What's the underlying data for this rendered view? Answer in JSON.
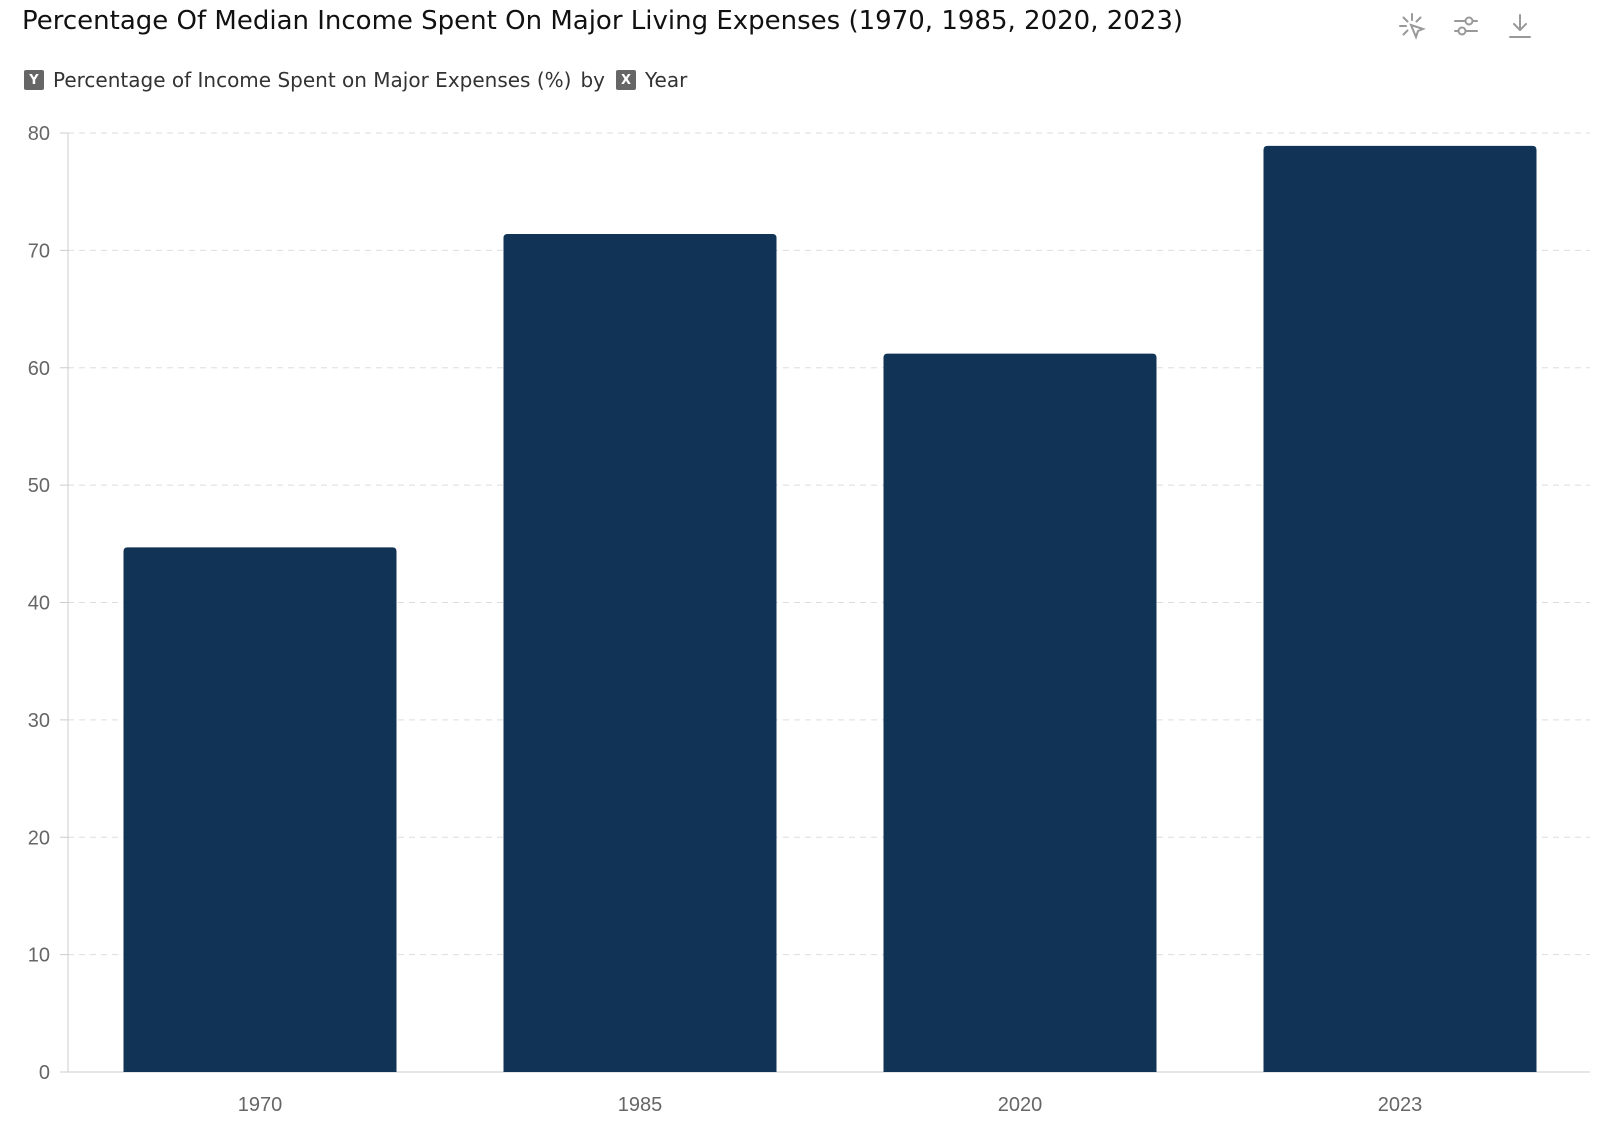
{
  "header": {
    "title": "Percentage Of Median Income Spent On Major Living Expenses (1970, 1985, 2020, 2023)",
    "subtitle": {
      "y_badge": "Y",
      "y_field": "Percentage of Income Spent on Major Expenses (%)",
      "by": "by",
      "x_badge": "X",
      "x_field": "Year"
    }
  },
  "toolbar": {
    "icons": [
      "select-pointer-icon",
      "sliders-icon",
      "download-icon"
    ]
  },
  "colors": {
    "bar": "#113355",
    "grid": "#dddddd",
    "axis": "#cccccc"
  },
  "chart_data": {
    "type": "bar",
    "title": "Percentage Of Median Income Spent On Major Living Expenses (1970, 1985, 2020, 2023)",
    "xlabel": "Year",
    "ylabel": "Percentage of Income Spent on Major Expenses (%)",
    "categories": [
      "1970",
      "1985",
      "2020",
      "2023"
    ],
    "values": [
      44.7,
      71.4,
      61.2,
      78.9
    ],
    "ylim": [
      0,
      80
    ],
    "yticks": [
      0,
      10,
      20,
      30,
      40,
      50,
      60,
      70,
      80
    ],
    "grid": true
  }
}
